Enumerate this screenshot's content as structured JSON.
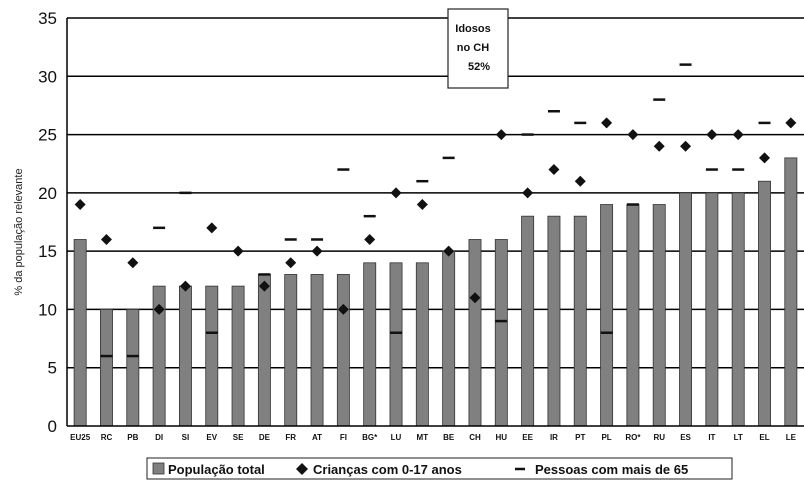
{
  "chart_data": {
    "type": "bar",
    "ylabel": "% da população relevante",
    "ylim": [
      0,
      35
    ],
    "yticks": [
      0,
      5,
      10,
      15,
      20,
      25,
      30,
      35
    ],
    "grid": true,
    "categories": [
      "EU25",
      "RC",
      "PB",
      "DI",
      "SI",
      "EV",
      "SE",
      "DE",
      "FR",
      "AT",
      "FI",
      "BG*",
      "LU",
      "MT",
      "BE",
      "CH",
      "HU",
      "EE",
      "IR",
      "PT",
      "PL",
      "RO*",
      "RU",
      "ES",
      "IT",
      "LT",
      "EL",
      "LE"
    ],
    "series": [
      {
        "name": "População total",
        "mark": "bar",
        "color": "#808080",
        "values": [
          16,
          10,
          10,
          12,
          12,
          12,
          12,
          13,
          13,
          13,
          13,
          14,
          14,
          14,
          15,
          16,
          16,
          18,
          18,
          18,
          19,
          19,
          19,
          20,
          20,
          20,
          21,
          23
        ]
      },
      {
        "name": "Crianças com 0-17 anos",
        "mark": "diamond",
        "color": "#111111",
        "values": [
          19,
          16,
          14,
          10,
          12,
          17,
          15,
          12,
          14,
          15,
          10,
          16,
          20,
          19,
          15,
          11,
          25,
          20,
          22,
          21,
          26,
          25,
          24,
          24,
          25,
          25,
          23,
          26
        ]
      },
      {
        "name": "Pessoas com mais de 65",
        "mark": "dash",
        "color": "#111111",
        "values": [
          null,
          6,
          6,
          17,
          20,
          8,
          null,
          13,
          16,
          16,
          22,
          18,
          8,
          21,
          23,
          null,
          9,
          25,
          27,
          26,
          8,
          19,
          28,
          31,
          22,
          22,
          26,
          null
        ]
      }
    ],
    "annotation": {
      "lines": [
        "Idosos",
        "no CH",
        "52%"
      ]
    },
    "legend_position": "bottom"
  }
}
